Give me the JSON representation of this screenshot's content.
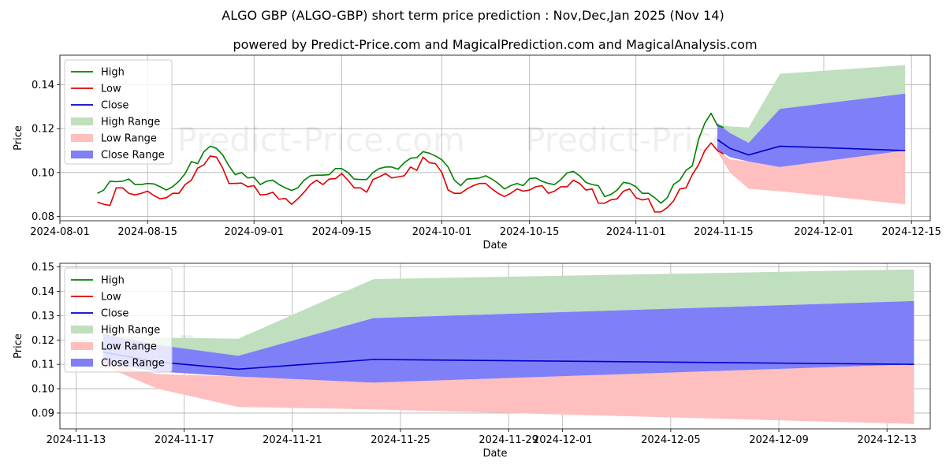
{
  "chart_data": [
    {
      "id": "top",
      "type": "line",
      "title": "ALGO GBP (ALGO-GBP) short term price prediction : Nov,Dec,Jan 2025 (Nov 14)",
      "subtitle": "powered by Predict-Price.com and MagicalPrediction.com and MagicalAnalysis.com",
      "xlabel": "Date",
      "ylabel": "Price",
      "xlim": [
        "2024-08-01",
        "2024-12-18"
      ],
      "ylim": [
        0.078,
        0.1535
      ],
      "xticks": [
        "2024-08-01",
        "2024-08-15",
        "2024-09-01",
        "2024-09-15",
        "2024-10-01",
        "2024-10-15",
        "2024-11-01",
        "2024-11-15",
        "2024-12-01",
        "2024-12-15"
      ],
      "yticks": [
        0.08,
        0.1,
        0.12,
        0.14
      ],
      "ytick_labels": [
        "0.08",
        "0.10",
        "0.12",
        "0.14"
      ],
      "legend_position": "top-left",
      "watermark": [
        "Predict-Price.com",
        "Predict-Price.com"
      ],
      "history_start": "2024-08-07",
      "history": {
        "high": [
          0.0905,
          0.092,
          0.096,
          0.0958,
          0.096,
          0.097,
          0.0945,
          0.0945,
          0.095,
          0.0948,
          0.0935,
          0.092,
          0.0935,
          0.096,
          0.0995,
          0.105,
          0.104,
          0.1095,
          0.112,
          0.111,
          0.108,
          0.103,
          0.099,
          0.1,
          0.0975,
          0.0978,
          0.0945,
          0.096,
          0.0965,
          0.0945,
          0.093,
          0.0918,
          0.093,
          0.0965,
          0.0985,
          0.0988,
          0.0988,
          0.099,
          0.1018,
          0.1018,
          0.1,
          0.097,
          0.0968,
          0.0968,
          0.1,
          0.1018,
          0.1025,
          0.1025,
          0.1015,
          0.1045,
          0.1065,
          0.1068,
          0.1095,
          0.1088,
          0.1075,
          0.1058,
          0.1025,
          0.0965,
          0.094,
          0.097,
          0.0972,
          0.0975,
          0.0985,
          0.097,
          0.095,
          0.0925,
          0.094,
          0.095,
          0.094,
          0.0972,
          0.0975,
          0.096,
          0.095,
          0.0945,
          0.0968,
          0.0998,
          0.1005,
          0.0985,
          0.0955,
          0.0945,
          0.094,
          0.089,
          0.09,
          0.092,
          0.0955,
          0.095,
          0.0935,
          0.0905,
          0.0905,
          0.0885,
          0.086,
          0.0885,
          0.0945,
          0.0965,
          0.101,
          0.103,
          0.115,
          0.1225,
          0.127,
          0.1215,
          0.1205
        ],
        "low": [
          0.0865,
          0.0855,
          0.085,
          0.093,
          0.093,
          0.0905,
          0.0898,
          0.0905,
          0.0915,
          0.0895,
          0.088,
          0.0885,
          0.0905,
          0.0905,
          0.0945,
          0.0965,
          0.102,
          0.1035,
          0.1075,
          0.107,
          0.102,
          0.095,
          0.095,
          0.0952,
          0.0935,
          0.094,
          0.0898,
          0.09,
          0.091,
          0.0878,
          0.0882,
          0.0855,
          0.088,
          0.091,
          0.0945,
          0.0965,
          0.0945,
          0.097,
          0.0972,
          0.0995,
          0.0965,
          0.093,
          0.093,
          0.091,
          0.0968,
          0.098,
          0.0995,
          0.0975,
          0.098,
          0.0985,
          0.1025,
          0.101,
          0.107,
          0.1045,
          0.104,
          0.1,
          0.092,
          0.0905,
          0.0905,
          0.0925,
          0.094,
          0.095,
          0.095,
          0.0925,
          0.0905,
          0.089,
          0.0905,
          0.0925,
          0.0915,
          0.092,
          0.0935,
          0.094,
          0.0905,
          0.0915,
          0.0935,
          0.0935,
          0.0965,
          0.095,
          0.092,
          0.0925,
          0.086,
          0.086,
          0.0875,
          0.088,
          0.0915,
          0.0925,
          0.0885,
          0.0875,
          0.088,
          0.082,
          0.082,
          0.084,
          0.087,
          0.0925,
          0.093,
          0.099,
          0.1035,
          0.11,
          0.1135,
          0.11,
          0.1085
        ]
      }
    },
    {
      "id": "bottom",
      "type": "line",
      "xlabel": "Date",
      "ylabel": "Price",
      "xlim": [
        "2024-11-12.4",
        "2024-12-14.6"
      ],
      "ylim": [
        0.0835,
        0.1515
      ],
      "xticks": [
        "2024-11-13",
        "2024-11-17",
        "2024-11-21",
        "2024-11-25",
        "2024-11-29",
        "2024-12-01",
        "2024-12-05",
        "2024-12-09",
        "2024-12-13"
      ],
      "yticks": [
        0.09,
        0.1,
        0.11,
        0.12,
        0.13,
        0.14,
        0.15
      ],
      "ytick_labels": [
        "0.09",
        "0.10",
        "0.11",
        "0.12",
        "0.13",
        "0.14",
        "0.15"
      ],
      "legend_position": "top-left",
      "watermark": [
        "Predict-Price.com",
        "Predict-Price.com"
      ]
    }
  ],
  "prediction": {
    "dates": [
      "2024-11-14",
      "2024-11-16",
      "2024-11-19",
      "2024-11-24",
      "2024-12-14"
    ],
    "high_range_upper": [
      0.122,
      0.121,
      0.1205,
      0.145,
      0.149
    ],
    "high_range_lower": [
      0.121,
      0.115,
      0.113,
      0.129,
      0.136
    ],
    "low_range_upper": [
      0.1105,
      0.106,
      0.105,
      0.1025,
      0.11
    ],
    "low_range_lower": [
      0.1095,
      0.1,
      0.0925,
      0.0915,
      0.0855
    ],
    "close_range_upper": [
      0.1225,
      0.118,
      0.1135,
      0.129,
      0.136
    ],
    "close_range_lower": [
      0.1105,
      0.107,
      0.105,
      0.1025,
      0.11
    ],
    "close": [
      0.115,
      0.111,
      0.108,
      0.112,
      0.11
    ]
  },
  "legend": [
    {
      "label": "High",
      "kind": "line",
      "color": "#008000"
    },
    {
      "label": "Low",
      "kind": "line",
      "color": "#e00000"
    },
    {
      "label": "Close",
      "kind": "line",
      "color": "#0000c8"
    },
    {
      "label": "High Range",
      "kind": "patch",
      "color": "#bfdfbf"
    },
    {
      "label": "Low Range",
      "kind": "patch",
      "color": "#ffbfbf"
    },
    {
      "label": "Close Range",
      "kind": "patch",
      "color": "#7f7ff8"
    }
  ],
  "colors": {
    "high": "#008000",
    "low": "#e00000",
    "close": "#0000c8",
    "high_range": "#bfdfbf",
    "low_range": "#ffbfbf",
    "close_range": "#7f7ff8",
    "grid": "#b0b0b0"
  }
}
